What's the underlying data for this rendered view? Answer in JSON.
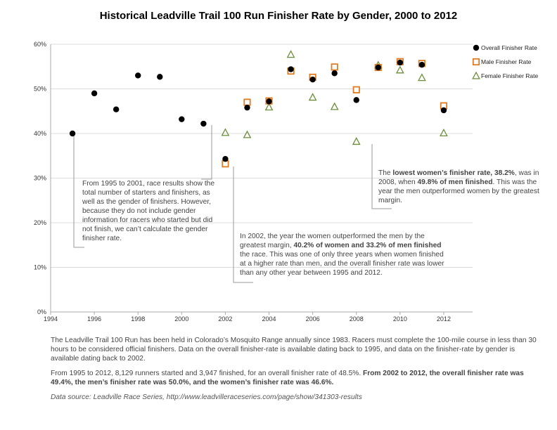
{
  "title": "Historical Leadville Trail 100 Run Finisher Rate by Gender, 2000 to 2012",
  "chart_data": {
    "type": "scatter",
    "xlim": [
      1994,
      2013
    ],
    "ylim": [
      0,
      60
    ],
    "x_ticks": [
      "1994",
      "1996",
      "1998",
      "2000",
      "2002",
      "2004",
      "2006",
      "2008",
      "2010",
      "2012"
    ],
    "y_ticks": [
      "0%",
      "10%",
      "20%",
      "30%",
      "40%",
      "50%",
      "60%"
    ],
    "grid": "horizontal",
    "legend_position": "top-right",
    "series": [
      {
        "name": "Overall Finisher Rate",
        "marker": "circle",
        "color": "#000000",
        "points": [
          [
            1995,
            40.0
          ],
          [
            1996,
            49.0
          ],
          [
            1997,
            45.4
          ],
          [
            1998,
            53.0
          ],
          [
            1999,
            52.7
          ],
          [
            2000,
            43.2
          ],
          [
            2001,
            42.2
          ],
          [
            2002,
            34.3
          ],
          [
            2003,
            45.8
          ],
          [
            2004,
            47.2
          ],
          [
            2005,
            54.4
          ],
          [
            2006,
            52.1
          ],
          [
            2007,
            53.5
          ],
          [
            2008,
            47.5
          ],
          [
            2009,
            54.8
          ],
          [
            2010,
            55.9
          ],
          [
            2011,
            55.4
          ],
          [
            2012,
            45.2
          ]
        ]
      },
      {
        "name": "Male Finisher Rate",
        "marker": "square",
        "color": "#E07B22",
        "points": [
          [
            2002,
            33.2
          ],
          [
            2003,
            47.0
          ],
          [
            2004,
            47.3
          ],
          [
            2005,
            54.0
          ],
          [
            2006,
            52.6
          ],
          [
            2007,
            54.9
          ],
          [
            2008,
            49.8
          ],
          [
            2009,
            54.8
          ],
          [
            2010,
            56.1
          ],
          [
            2011,
            55.7
          ],
          [
            2012,
            46.2
          ]
        ]
      },
      {
        "name": "Female Finisher Rate",
        "marker": "triangle",
        "color": "#6B8E3A",
        "points": [
          [
            2002,
            40.2
          ],
          [
            2003,
            39.7
          ],
          [
            2004,
            45.9
          ],
          [
            2005,
            57.7
          ],
          [
            2006,
            48.1
          ],
          [
            2007,
            46.0
          ],
          [
            2008,
            38.2
          ],
          [
            2009,
            55.3
          ],
          [
            2010,
            54.2
          ],
          [
            2011,
            52.5
          ],
          [
            2012,
            40.1
          ]
        ]
      }
    ]
  },
  "annotations": {
    "early_years": "From 1995 to 2001, race results show the total number of starters and finishers, as well as the gender of finishers. However, because they do not include gender information for racers who started but did not finish, we can’t calculate the gender finisher rate.",
    "y2002_a": "In 2002, the year the women outperformed the men by the greatest margin, ",
    "y2002_b": "40.2% of women and 33.2% of men finished",
    "y2002_c": " the race. This was one of only three years when women finished at a higher rate than men, and the overall finisher rate was lower than any other year between 1995 and 2012.",
    "y2008_a": "The ",
    "y2008_b": "lowest women’s finisher rate, 38.2%",
    "y2008_c": ", was in 2008, when ",
    "y2008_d": "49.8% of men finished",
    "y2008_e": ". This was the year the men outperformed women by the greatest margin."
  },
  "footer": {
    "p1": "The Leadville Trail 100 Run has been held in Colorado’s Mosquito Range annually since 1983. Racers must complete the 100-mile course in less than 30 hours to be considered official finishers. Data on the overall finisher-rate is available dating back to 1995, and data on the finisher-rate by gender is available dating back to 2002.",
    "p2_a": "From 1995 to 2012, 8,129 runners started and 3,947 finished, for an overall finisher rate of 48.5%. ",
    "p2_b": "From 2002 to 2012, the overall finisher rate was 49.4%, the men’s finisher rate was 50.0%, and the women’s finisher rate was 46.6%.",
    "source": "Data source: Leadville Race Series, http://www.leadvilleraceseries.com/page/show/341303-results"
  }
}
